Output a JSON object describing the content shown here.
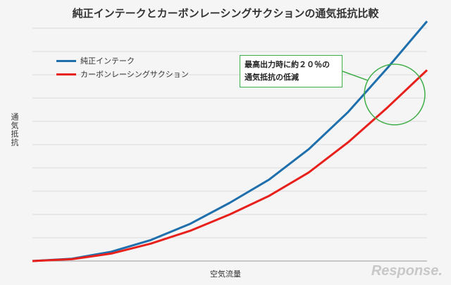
{
  "chart_data": {
    "type": "line",
    "title": "純正インテークとカーボンレーシングサクションの通気抵抗比較",
    "xlabel": "空気流量",
    "ylabel": "通気抵抗",
    "xlim": [
      0,
      100
    ],
    "ylim": [
      0,
      100
    ],
    "grid": true,
    "legend_position": "top-left",
    "series": [
      {
        "name": "純正インテーク",
        "color": "#1f6fad",
        "x": [
          0,
          10,
          20,
          30,
          40,
          50,
          60,
          70,
          80,
          90,
          100
        ],
        "values": [
          0,
          1,
          4,
          9,
          16,
          25,
          35,
          48,
          64,
          83,
          103
        ]
      },
      {
        "name": "カーボンレーシングサクション",
        "color": "#e8201c",
        "x": [
          0,
          10,
          20,
          30,
          40,
          50,
          60,
          70,
          80,
          90,
          100
        ],
        "values": [
          0,
          0.8,
          3.2,
          7.5,
          13,
          20,
          28,
          38,
          51,
          66,
          82
        ]
      }
    ],
    "annotations": [
      {
        "text_line1": "最高出力時に約２０％の",
        "text_line2": "通気抵抗の低減",
        "color": "#3fae49"
      }
    ]
  },
  "watermark": "Response."
}
